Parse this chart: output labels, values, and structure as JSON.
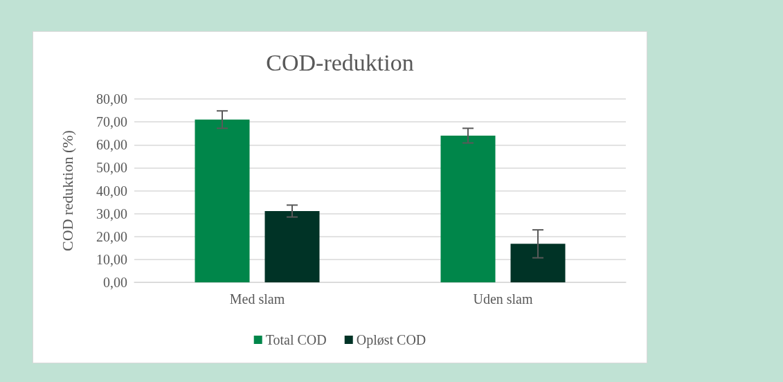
{
  "chart_data": {
    "type": "bar",
    "title": "COD-reduktion",
    "ylabel": "COD reduktion (%)",
    "categories": [
      "Med slam",
      "Uden slam"
    ],
    "series": [
      {
        "name": "Total COD",
        "color": "#00864a",
        "values": [
          71.0,
          64.0
        ],
        "errors": [
          3.8,
          3.2
        ]
      },
      {
        "name": "Opløst COD",
        "color": "#003326",
        "values": [
          31.1,
          16.8
        ],
        "errors": [
          2.6,
          6.1
        ]
      }
    ],
    "ylim": [
      0,
      80
    ],
    "yticks": [
      {
        "value": 0,
        "label": "0,00"
      },
      {
        "value": 10,
        "label": "10,00"
      },
      {
        "value": 20,
        "label": "20,00"
      },
      {
        "value": 30,
        "label": "30,00"
      },
      {
        "value": 40,
        "label": "40,00"
      },
      {
        "value": 50,
        "label": "50,00"
      },
      {
        "value": 60,
        "label": "60,00"
      },
      {
        "value": 70,
        "label": "70,00"
      },
      {
        "value": 80,
        "label": "80,00"
      }
    ],
    "grid": "y",
    "legend": "bottom"
  }
}
